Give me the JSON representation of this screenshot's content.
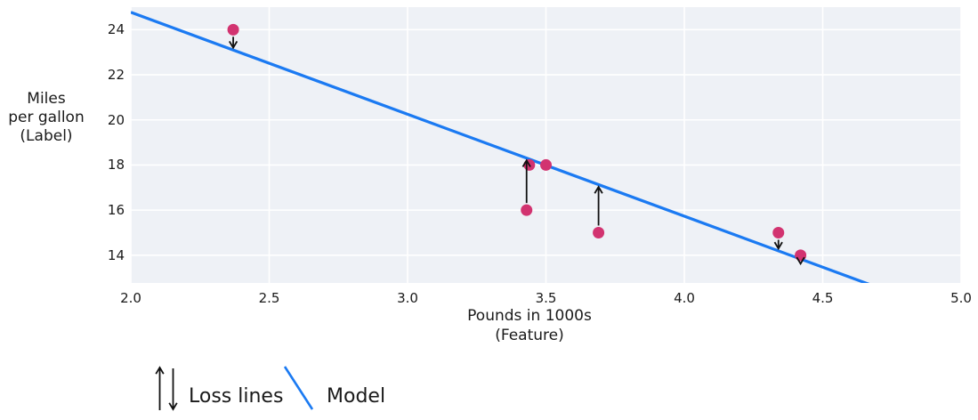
{
  "chart_data": {
    "type": "scatter",
    "title": "",
    "xlabel": "Pounds in 1000s (Feature)",
    "ylabel": "Miles per gallon (Label)",
    "xlim": [
      2.0,
      5.0
    ],
    "ylim": [
      12.77,
      25.0
    ],
    "x_ticks": [
      2.0,
      2.5,
      3.0,
      3.5,
      4.0,
      4.5,
      5.0
    ],
    "y_ticks": [
      24,
      22,
      20,
      18,
      16,
      14
    ],
    "grid": true,
    "legend_position": "bottom-left",
    "points": [
      {
        "x": 2.37,
        "y": 24
      },
      {
        "x": 3.44,
        "y": 18
      },
      {
        "x": 3.5,
        "y": 18
      },
      {
        "x": 3.43,
        "y": 16
      },
      {
        "x": 3.69,
        "y": 15
      },
      {
        "x": 4.34,
        "y": 15
      },
      {
        "x": 4.42,
        "y": 14
      }
    ],
    "model_line": {
      "slope": -4.52,
      "intercept": 33.81,
      "x_start": 2.0,
      "x_end": 5.0
    },
    "loss_lines": [
      {
        "x": 2.37,
        "y": 24,
        "direction": "down"
      },
      {
        "x": 3.43,
        "y": 16,
        "direction": "up"
      },
      {
        "x": 3.69,
        "y": 15,
        "direction": "up"
      },
      {
        "x": 4.34,
        "y": 15,
        "direction": "down"
      },
      {
        "x": 4.42,
        "y": 14,
        "direction": "down"
      }
    ],
    "legend": [
      {
        "symbol": "up-down-arrows",
        "label": "Loss lines"
      },
      {
        "symbol": "blue-line",
        "label": "Model"
      }
    ],
    "colors": {
      "point": "#d23370",
      "model": "#1b7af2",
      "arrow": "#111111",
      "plot_bg": "#eef1f6",
      "grid": "#ffffff",
      "text": "#1a1a1a"
    }
  },
  "axes": {
    "ylabel_lines": [
      "Miles",
      "per gallon",
      "(Label)"
    ],
    "xlabel_lines": [
      "Pounds in 1000s",
      "(Feature)"
    ],
    "x_tick_labels": [
      "2.0",
      "2.5",
      "3.0",
      "3.5",
      "4.0",
      "4.5",
      "5.0"
    ],
    "y_tick_labels": [
      "24",
      "22",
      "20",
      "18",
      "16",
      "14"
    ]
  },
  "legend": {
    "loss_label": "Loss lines",
    "model_label": "Model"
  }
}
